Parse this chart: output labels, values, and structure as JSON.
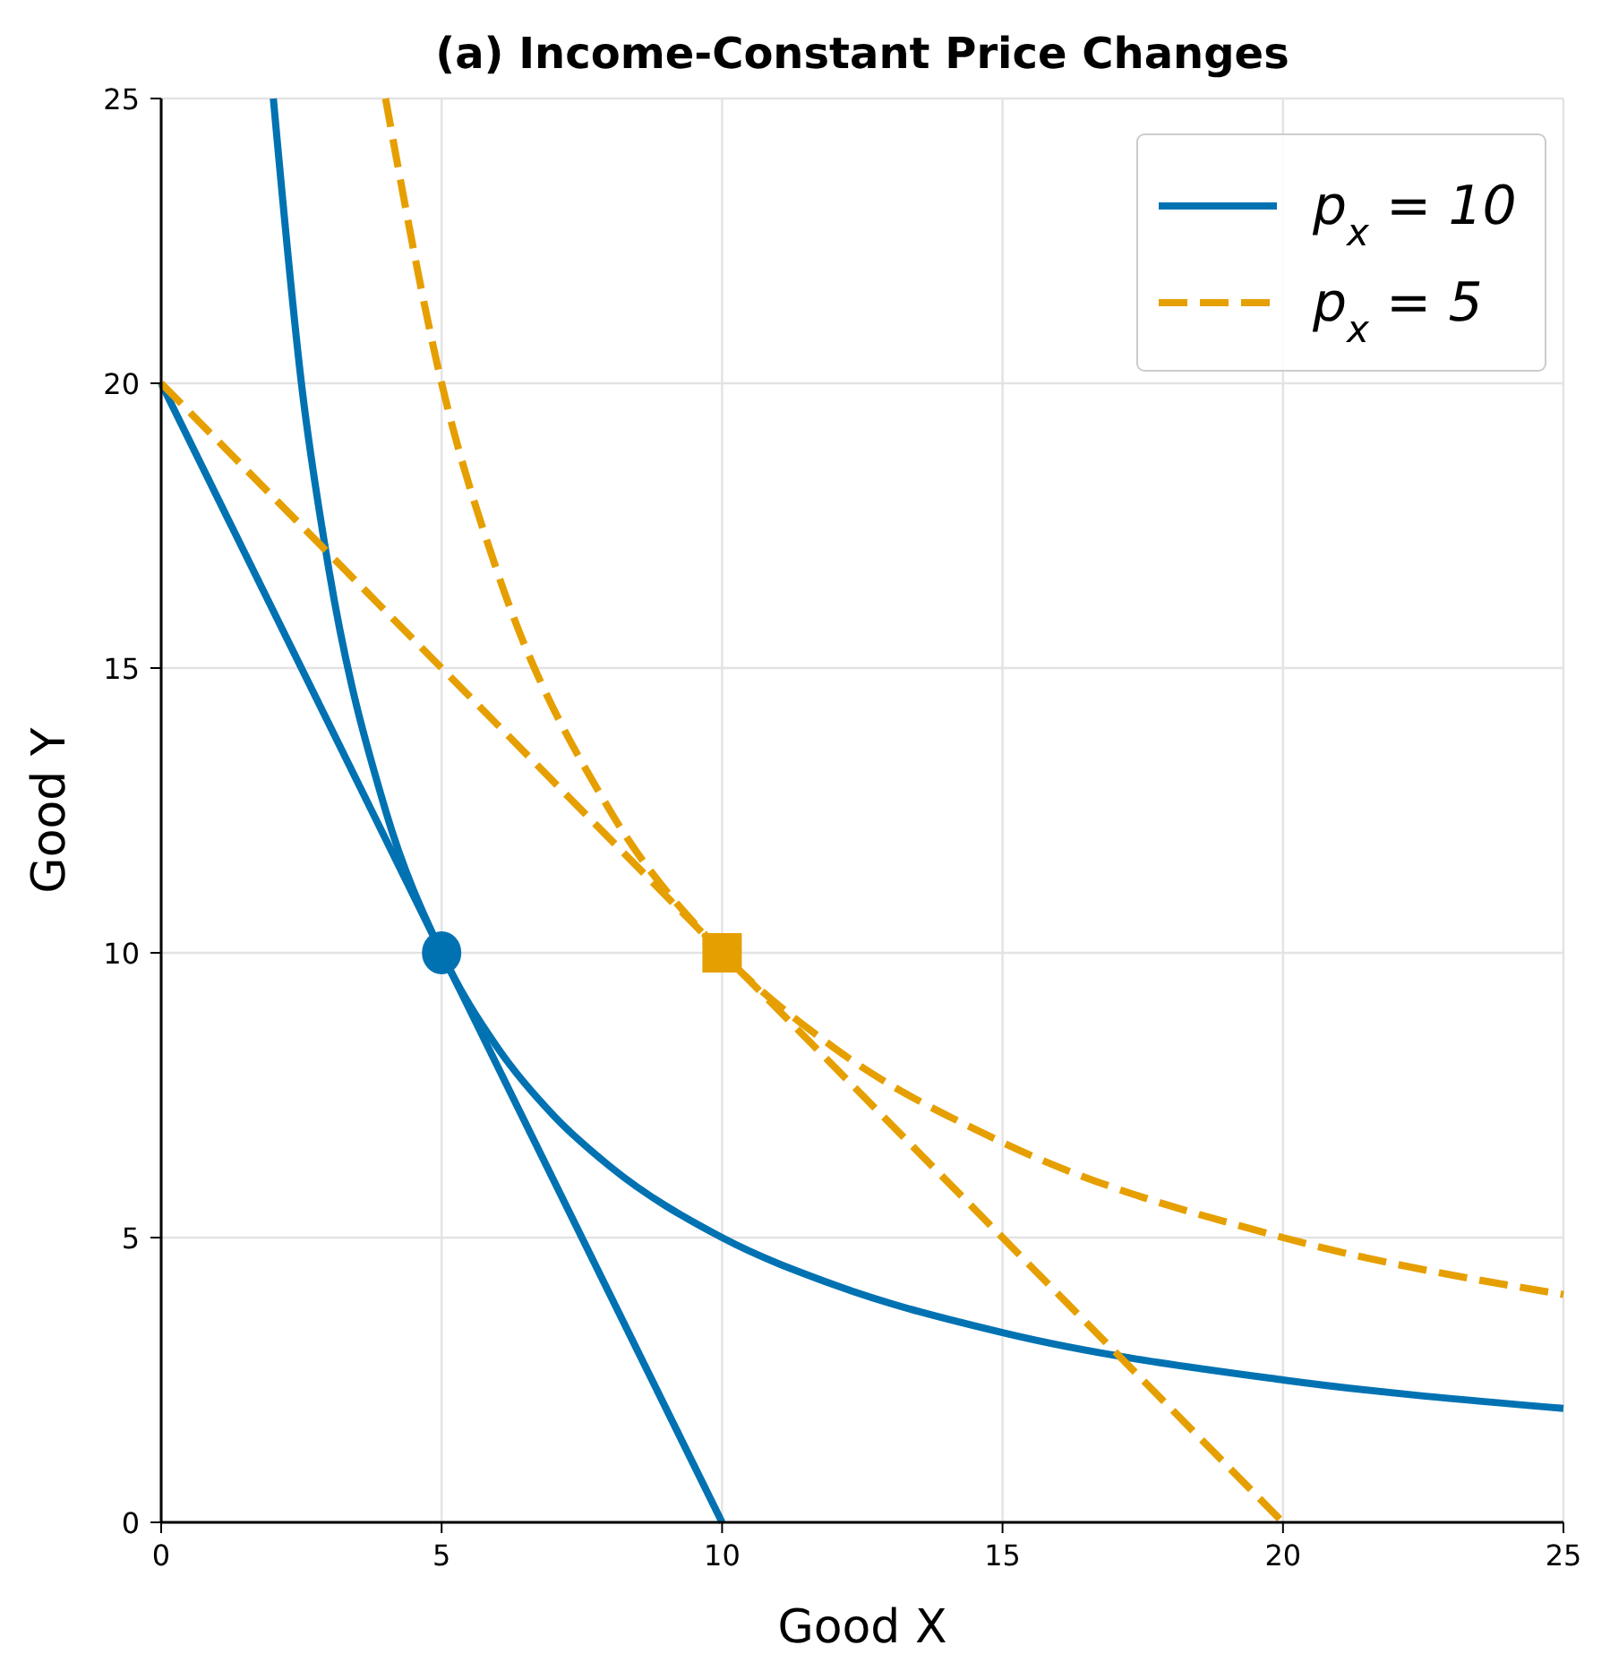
{
  "chart_data": {
    "type": "line",
    "title": "(a) Income-Constant Price Changes",
    "xlabel": "Good X",
    "ylabel": "Good Y",
    "xlim": [
      0,
      25
    ],
    "ylim": [
      0,
      25
    ],
    "xticks": [
      0,
      5,
      10,
      15,
      20,
      25
    ],
    "yticks": [
      0,
      5,
      10,
      15,
      20,
      25
    ],
    "grid": true,
    "legend": "top right",
    "series": [
      {
        "color": "#0072b2",
        "line_style": "solid",
        "x": [
          0,
          10
        ],
        "values": [
          20,
          0
        ]
      },
      {
        "name": "p$_{x}$ = 10",
        "color": "#0072b2",
        "line_style": "solid",
        "x": [
          2,
          2.5,
          3,
          4,
          5,
          6,
          7,
          8,
          10,
          12,
          15,
          20,
          25
        ],
        "values": [
          25,
          20,
          16.67,
          12.5,
          10,
          8.33,
          7.14,
          6.25,
          5,
          4.17,
          3.33,
          2.5,
          2
        ]
      },
      {
        "color": "#e69f00",
        "line_style": "dashed",
        "x": [
          0,
          20
        ],
        "values": [
          20,
          0
        ]
      },
      {
        "name": "p$_{x}$ = 5",
        "color": "#e69f00",
        "line_style": "dashed",
        "x": [
          4,
          5,
          6,
          8,
          10,
          12,
          15,
          20,
          25
        ],
        "values": [
          25,
          20,
          16.67,
          12.5,
          10,
          8.33,
          6.67,
          5,
          4
        ]
      },
      {
        "type": "scatter",
        "color": "#0072b2",
        "marker": "circle",
        "x": [
          5
        ],
        "values": [
          10
        ]
      },
      {
        "type": "scatter",
        "color": "#e69f00",
        "marker": "square",
        "x": [
          10
        ],
        "values": [
          10
        ]
      }
    ]
  }
}
